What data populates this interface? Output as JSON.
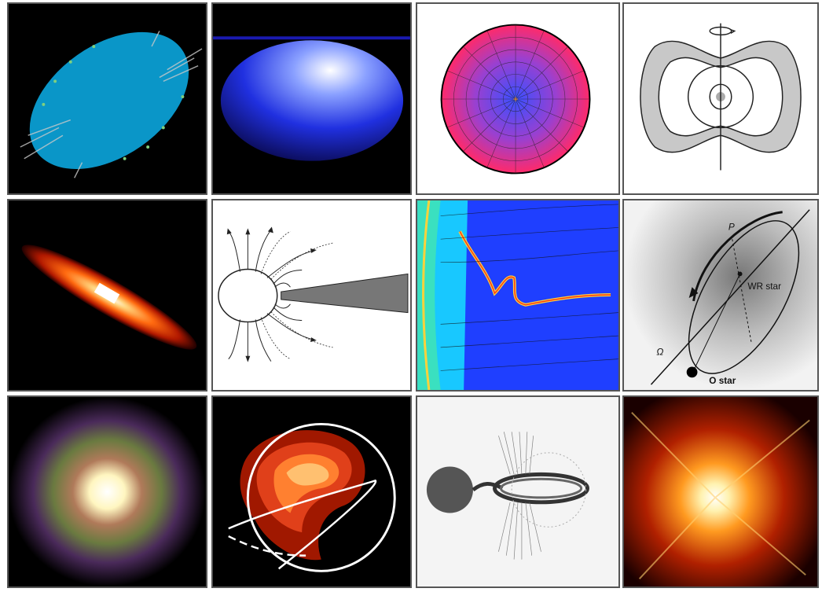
{
  "panels": [
    {
      "id": "r1c1"
    },
    {
      "id": "r1c2"
    },
    {
      "id": "r1c3"
    },
    {
      "id": "r1c4"
    },
    {
      "id": "r2c1"
    },
    {
      "id": "r2c2"
    },
    {
      "id": "r2c3"
    },
    {
      "id": "r2c4",
      "labels": {
        "p": "P",
        "wr": "WR star",
        "omega": "Ω",
        "o": "O star"
      }
    },
    {
      "id": "r3c1"
    },
    {
      "id": "r3c2"
    },
    {
      "id": "r3c3"
    },
    {
      "id": "r3c4"
    }
  ]
}
